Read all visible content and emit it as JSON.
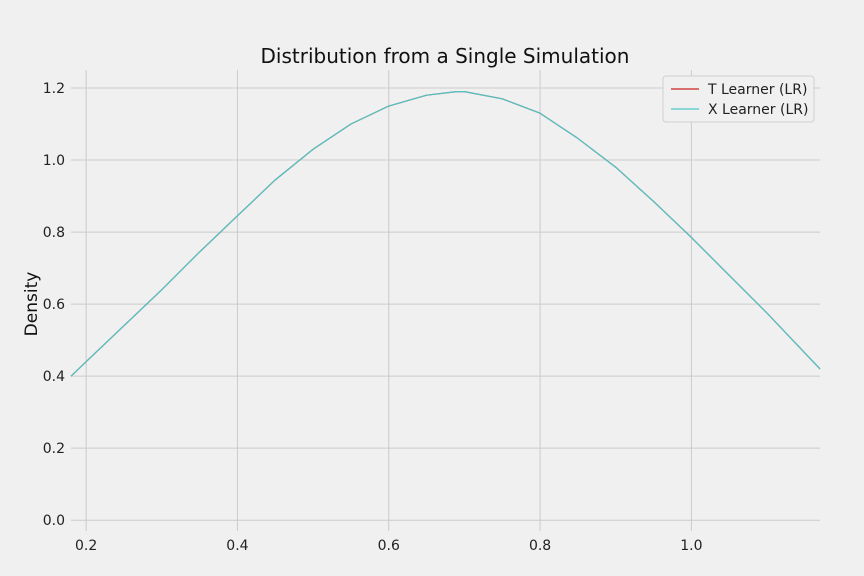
{
  "chart_data": {
    "type": "line",
    "title": "Distribution from a Single Simulation",
    "xlabel": "",
    "ylabel": "Density",
    "xlim": [
      0.18,
      1.17
    ],
    "ylim": [
      -0.03,
      1.25
    ],
    "xticks": [
      0.2,
      0.4,
      0.6,
      0.8,
      1.0
    ],
    "yticks": [
      0.0,
      0.2,
      0.4,
      0.6,
      0.8,
      1.0,
      1.2
    ],
    "xtick_labels": [
      "0.2",
      "0.4",
      "0.6",
      "0.8",
      "1.0"
    ],
    "ytick_labels": [
      "0.0",
      "0.2",
      "0.4",
      "0.6",
      "0.8",
      "1.0",
      "1.2"
    ],
    "grid": true,
    "legend_position": "top-right",
    "series": [
      {
        "name": "T Learner (LR)",
        "color": "#cc2222",
        "x": [
          0.18,
          0.2,
          0.25,
          0.3,
          0.35,
          0.4,
          0.45,
          0.5,
          0.55,
          0.6,
          0.65,
          0.69,
          0.7,
          0.75,
          0.8,
          0.85,
          0.9,
          0.95,
          1.0,
          1.05,
          1.1,
          1.17
        ],
        "y": [
          0.4,
          0.44,
          0.54,
          0.64,
          0.745,
          0.845,
          0.945,
          1.03,
          1.1,
          1.15,
          1.18,
          1.19,
          1.19,
          1.17,
          1.13,
          1.06,
          0.98,
          0.885,
          0.785,
          0.68,
          0.575,
          0.42
        ]
      },
      {
        "name": "X Learner (LR)",
        "color": "#4cc8c8",
        "x": [
          0.18,
          0.2,
          0.25,
          0.3,
          0.35,
          0.4,
          0.45,
          0.5,
          0.55,
          0.6,
          0.65,
          0.69,
          0.7,
          0.75,
          0.8,
          0.85,
          0.9,
          0.95,
          1.0,
          1.05,
          1.1,
          1.17
        ],
        "y": [
          0.4,
          0.44,
          0.54,
          0.64,
          0.745,
          0.845,
          0.945,
          1.03,
          1.1,
          1.15,
          1.18,
          1.19,
          1.19,
          1.17,
          1.13,
          1.06,
          0.98,
          0.885,
          0.785,
          0.68,
          0.575,
          0.42
        ]
      }
    ]
  }
}
